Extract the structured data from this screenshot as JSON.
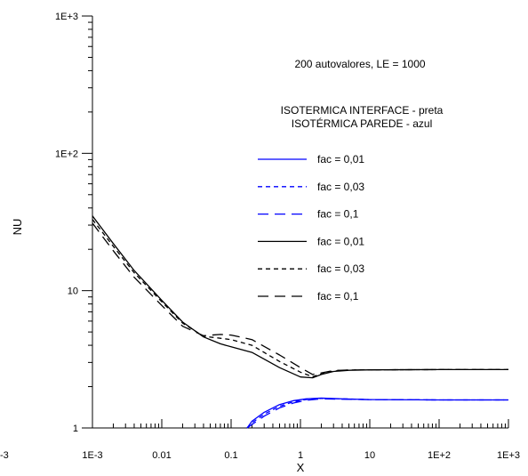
{
  "chart_data": {
    "type": "line",
    "xlabel": "X",
    "ylabel": "NU",
    "xscale": "log",
    "yscale": "log",
    "xlim": [
      0.001,
      1000
    ],
    "ylim": [
      1,
      1000
    ],
    "x_ticks": [
      {
        "value": 0.001,
        "label": "1E-3"
      },
      {
        "value": 0.01,
        "label": "0.01"
      },
      {
        "value": 0.1,
        "label": "0.1"
      },
      {
        "value": 1,
        "label": "1"
      },
      {
        "value": 10,
        "label": "10"
      },
      {
        "value": 100,
        "label": "1E+2"
      },
      {
        "value": 1000,
        "label": "1E+3"
      }
    ],
    "y_ticks": [
      {
        "value": 1,
        "label": "1"
      },
      {
        "value": 10,
        "label": "10"
      },
      {
        "value": 100,
        "label": "1E+2"
      },
      {
        "value": 1000,
        "label": "1E+3"
      }
    ],
    "clipped_label": "-3",
    "annotations": [
      "200 autovalores, LE = 1000",
      "ISOTERMICA INTERFACE - preta",
      "ISOTÉRMICA PAREDE - azul"
    ],
    "legend_placement": "top-right",
    "series": [
      {
        "name": "fac = 0,01",
        "color": "#0000ff",
        "dash": "solid",
        "x": [
          0.17,
          0.2,
          0.3,
          0.5,
          0.8,
          1.2,
          2,
          4,
          10,
          100,
          1000
        ],
        "y": [
          1.0,
          1.12,
          1.3,
          1.48,
          1.58,
          1.63,
          1.65,
          1.63,
          1.61,
          1.6,
          1.6
        ]
      },
      {
        "name": "fac = 0,03",
        "color": "#0000ff",
        "dash": "short",
        "x": [
          0.17,
          0.2,
          0.3,
          0.5,
          0.8,
          1.2,
          2,
          4,
          10,
          100,
          1000
        ],
        "y": [
          1.0,
          1.09,
          1.26,
          1.44,
          1.55,
          1.61,
          1.64,
          1.63,
          1.61,
          1.6,
          1.6
        ]
      },
      {
        "name": "fac = 0,1",
        "color": "#0000ff",
        "dash": "long",
        "x": [
          0.17,
          0.2,
          0.3,
          0.5,
          0.8,
          1.2,
          2,
          4,
          10,
          100,
          1000
        ],
        "y": [
          1.0,
          1.06,
          1.22,
          1.4,
          1.52,
          1.59,
          1.63,
          1.62,
          1.61,
          1.6,
          1.6
        ]
      },
      {
        "name": "fac = 0,01",
        "color": "#000000",
        "dash": "solid",
        "x": [
          0.001,
          0.002,
          0.004,
          0.01,
          0.02,
          0.04,
          0.07,
          0.1,
          0.2,
          0.5,
          1,
          1.5,
          2,
          3,
          5,
          10,
          100,
          1000
        ],
        "y": [
          35,
          22,
          14,
          8.5,
          5.9,
          4.6,
          4.1,
          3.9,
          3.55,
          2.75,
          2.35,
          2.32,
          2.45,
          2.58,
          2.63,
          2.65,
          2.66,
          2.66
        ]
      },
      {
        "name": "fac = 0,03",
        "color": "#000000",
        "dash": "short",
        "x": [
          0.001,
          0.002,
          0.004,
          0.01,
          0.02,
          0.04,
          0.07,
          0.1,
          0.2,
          0.5,
          1,
          1.5,
          2,
          3,
          5,
          10,
          100,
          1000
        ],
        "y": [
          33,
          21,
          13.5,
          8.3,
          5.8,
          4.65,
          4.5,
          4.4,
          4.0,
          3.05,
          2.55,
          2.36,
          2.48,
          2.6,
          2.64,
          2.65,
          2.66,
          2.66
        ]
      },
      {
        "name": "fac = 0,1",
        "color": "#000000",
        "dash": "long",
        "x": [
          0.001,
          0.002,
          0.004,
          0.01,
          0.02,
          0.04,
          0.07,
          0.1,
          0.2,
          0.5,
          1,
          1.5,
          2,
          3,
          5,
          10,
          100,
          1000
        ],
        "y": [
          31,
          19.5,
          12.5,
          7.8,
          5.5,
          4.7,
          4.8,
          4.75,
          4.4,
          3.4,
          2.75,
          2.45,
          2.52,
          2.62,
          2.64,
          2.65,
          2.66,
          2.66
        ]
      }
    ]
  }
}
